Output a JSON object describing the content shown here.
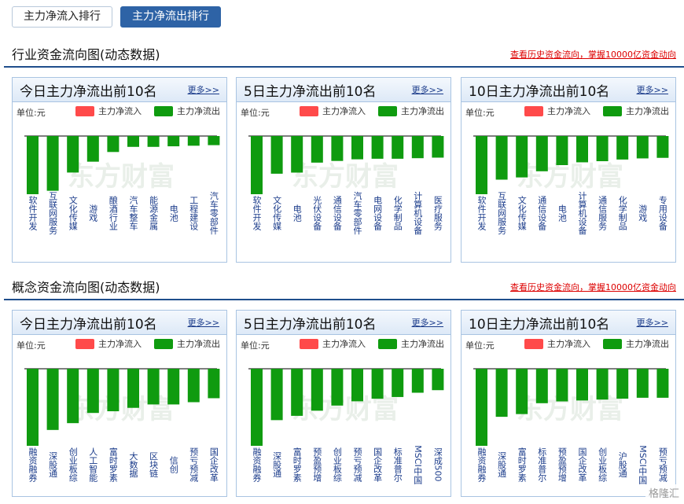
{
  "tabs": [
    {
      "label": "主力净流入排行",
      "active": false
    },
    {
      "label": "主力净流出排行",
      "active": true
    }
  ],
  "sections": [
    {
      "title": "行业资金流向图(动态数据)",
      "history_link": "查看历史资金流向，掌握10000亿资金动向",
      "panels": [
        {
          "title": "今日主力净流出前10名",
          "more": "更多>>",
          "categories": [
            "软件开发",
            "互联网服务",
            "文化传媒",
            "游戏",
            "酿酒行业",
            "汽车整车",
            "能源金属",
            "电池",
            "工程建设",
            "汽车零部件"
          ],
          "values": [
            -10.2,
            -9.6,
            -6.4,
            -4.5,
            -2.8,
            -1.9,
            -1.9,
            -1.8,
            -1.7,
            -1.6
          ]
        },
        {
          "title": "5日主力净流出前10名",
          "more": "更多>>",
          "categories": [
            "软件开发",
            "文化传媒",
            "电池",
            "光伏设备",
            "通信设备",
            "汽车零部件",
            "电网设备",
            "化学制品",
            "计算机设备",
            "医疗服务"
          ],
          "values": [
            -10.5,
            -6.8,
            -6.6,
            -4.8,
            -4.5,
            -4.2,
            -4.1,
            -4.1,
            -4.0,
            -3.9
          ]
        },
        {
          "title": "10日主力净流出前10名",
          "more": "更多>>",
          "categories": [
            "软件开发",
            "互联网服务",
            "文化传媒",
            "通信设备",
            "电池",
            "计算机设备",
            "通信服务",
            "化学制品",
            "游戏",
            "专用设备"
          ],
          "values": [
            -10.4,
            -7.8,
            -7.4,
            -6.3,
            -5.2,
            -4.7,
            -4.5,
            -4.2,
            -4.0,
            -3.9
          ]
        }
      ]
    },
    {
      "title": "概念资金流向图(动态数据)",
      "history_link": "查看历史资金流向，掌握10000亿资金动向",
      "panels": [
        {
          "title": "今日主力净流出前10名",
          "more": "更多>>",
          "categories": [
            "融资融券",
            "深股通",
            "创业板综",
            "人工智能",
            "富时罗素",
            "大数据",
            "区块链",
            "信创",
            "预亏预减",
            "国企改革"
          ],
          "values": [
            -13.6,
            -10.8,
            -9.6,
            -7.8,
            -7.5,
            -6.9,
            -6.3,
            -6.3,
            -5.9,
            -5.2
          ]
        },
        {
          "title": "5日主力净流出前10名",
          "more": "更多>>",
          "categories": [
            "融资融券",
            "深股通",
            "富时罗素",
            "预盈预增",
            "创业板综",
            "预亏预减",
            "国企改革",
            "标准普尔",
            "MSCI中国",
            "深成500"
          ],
          "values": [
            -9.0,
            -6.0,
            -5.5,
            -4.9,
            -4.3,
            -3.8,
            -3.5,
            -3.3,
            -2.8,
            -2.5
          ]
        },
        {
          "title": "10日主力净流出前10名",
          "more": "更多>>",
          "categories": [
            "融资融券",
            "深股通",
            "富时罗素",
            "标准普尔",
            "预盈预增",
            "国企改革",
            "创业板综",
            "沪股通",
            "MSCI中国",
            "预亏预减"
          ],
          "values": [
            -8.5,
            -5.3,
            -5.0,
            -3.8,
            -3.6,
            -3.5,
            -3.4,
            -3.3,
            -3.2,
            -3.2
          ]
        }
      ]
    }
  ],
  "legend": {
    "unit": "单位:元",
    "inflow": "主力净流入",
    "outflow": "主力净流出"
  },
  "colors": {
    "inflow": "#ff4a4a",
    "outflow": "#0f9b0f",
    "axis": "#333333",
    "label": "#1a3b8a",
    "accent": "#2e63a6"
  },
  "watermark": "东方财富",
  "corner_mark": "格隆汇"
}
